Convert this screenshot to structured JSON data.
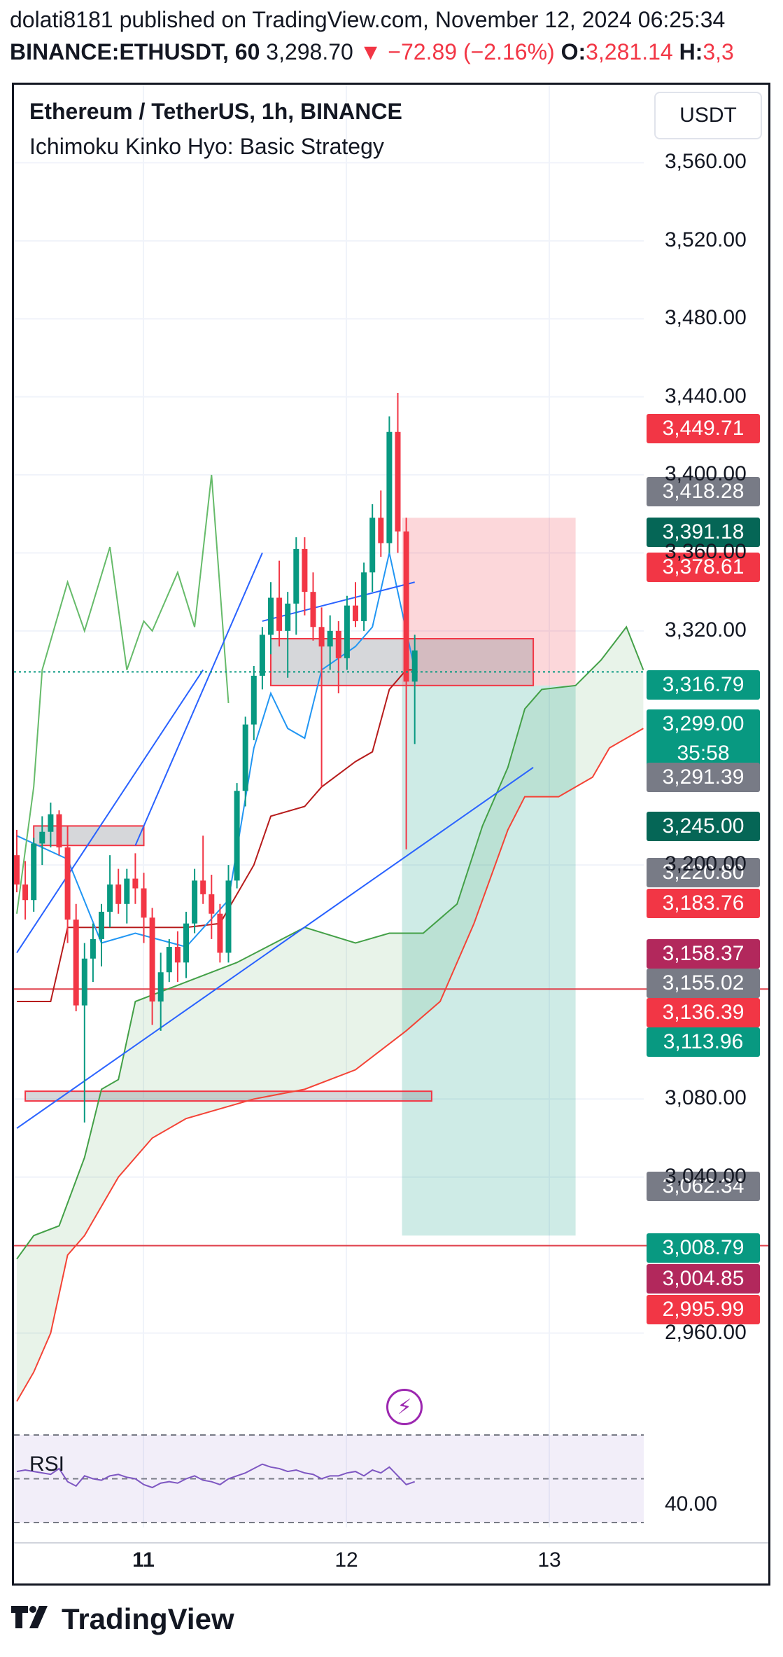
{
  "header": {
    "line1": "dolati8181 published on TradingView.com, November 12, 2024 06:25:34",
    "symbol": "BINANCE:ETHUSDT, 60",
    "price": "3,298.70",
    "change": "▼ −72.89 (−2.16%)",
    "ohlc_o_label": "O:",
    "ohlc_o_value": "3,281.14",
    "ohlc_h_label": "H:",
    "ohlc_h_value": "3,3"
  },
  "chart": {
    "title": "Ethereum / TetherUS, 1h, BINANCE",
    "indicator": "Ichimoku Kinko Hyo: Basic Strategy",
    "currency_button": "USDT",
    "rsi_label": "RSI",
    "rsi_value_label": "40.00",
    "bolt_icon": "⚡",
    "colors": {
      "up": "#089981",
      "down": "#f23645",
      "tenkan": "#2196f3",
      "kijun": "#b71c1c",
      "span_a": "#43a047",
      "span_b": "#f44336",
      "chikou": "#66bb6a",
      "rsi": "#7e57c2"
    }
  },
  "price_tags": [
    {
      "label": "3,449.71",
      "color": "#f23645"
    },
    {
      "label": "3,418.28",
      "color": "#787b86"
    },
    {
      "label": "3,391.18",
      "color": "#056656"
    },
    {
      "label": "3,378.61",
      "color": "#f23645"
    },
    {
      "label": "3,316.79",
      "color": "#089981"
    },
    {
      "label": "3,299.00",
      "sub": "35:58",
      "color": "#089981"
    },
    {
      "label": "3,291.39",
      "color": "#787b86"
    },
    {
      "label": "3,245.00",
      "color": "#056656"
    },
    {
      "label": "3,220.80",
      "color": "#787b86"
    },
    {
      "label": "3,183.76",
      "color": "#f23645"
    },
    {
      "label": "3,158.37",
      "color": "#b2285c"
    },
    {
      "label": "3,155.02",
      "color": "#787b86"
    },
    {
      "label": "3,136.39",
      "color": "#f23645"
    },
    {
      "label": "3,113.96",
      "color": "#089981"
    },
    {
      "label": "3,062.34",
      "color": "#787b86"
    },
    {
      "label": "3,008.79",
      "color": "#089981"
    },
    {
      "label": "3,004.85",
      "color": "#b2285c"
    },
    {
      "label": "2,995.99",
      "color": "#f23645"
    }
  ],
  "chart_data": {
    "type": "candlestick",
    "title": "Ethereum / TetherUS, 1h, BINANCE",
    "y_ticks": [
      "3,560.00",
      "3,520.00",
      "3,480.00",
      "3,440.00",
      "3,400.00",
      "3,360.00",
      "3,320.00",
      "3,200.00",
      "3,080.00",
      "3,040.00",
      "2,960.00"
    ],
    "y_tick_values": [
      3560,
      3520,
      3480,
      3440,
      3400,
      3360,
      3320,
      3200,
      3080,
      3040,
      2960
    ],
    "x_ticks": [
      "11",
      "12",
      "13"
    ],
    "ylim": [
      2925,
      3600
    ],
    "last_price": 3299.0,
    "candles": [
      [
        3205,
        3218,
        3186,
        3190
      ],
      [
        3190,
        3202,
        3172,
        3182
      ],
      [
        3182,
        3214,
        3176,
        3211
      ],
      [
        3211,
        3225,
        3200,
        3217
      ],
      [
        3217,
        3232,
        3209,
        3226
      ],
      [
        3226,
        3228,
        3205,
        3209
      ],
      [
        3209,
        3220,
        3160,
        3172
      ],
      [
        3172,
        3180,
        3125,
        3128
      ],
      [
        3128,
        3160,
        3068,
        3152
      ],
      [
        3152,
        3170,
        3140,
        3162
      ],
      [
        3162,
        3180,
        3148,
        3176
      ],
      [
        3176,
        3205,
        3168,
        3190
      ],
      [
        3190,
        3198,
        3175,
        3180
      ],
      [
        3180,
        3198,
        3170,
        3193
      ],
      [
        3193,
        3206,
        3180,
        3188
      ],
      [
        3188,
        3196,
        3160,
        3173
      ],
      [
        3173,
        3178,
        3118,
        3130
      ],
      [
        3130,
        3155,
        3115,
        3145
      ],
      [
        3145,
        3162,
        3140,
        3158
      ],
      [
        3158,
        3166,
        3140,
        3150
      ],
      [
        3150,
        3176,
        3142,
        3170
      ],
      [
        3170,
        3198,
        3165,
        3192
      ],
      [
        3192,
        3215,
        3180,
        3185
      ],
      [
        3185,
        3195,
        3162,
        3175
      ],
      [
        3175,
        3180,
        3150,
        3155
      ],
      [
        3155,
        3200,
        3150,
        3192
      ],
      [
        3192,
        3242,
        3188,
        3238
      ],
      [
        3238,
        3276,
        3230,
        3272
      ],
      [
        3272,
        3302,
        3264,
        3297
      ],
      [
        3297,
        3322,
        3290,
        3318
      ],
      [
        3318,
        3345,
        3308,
        3337
      ],
      [
        3337,
        3356,
        3312,
        3320
      ],
      [
        3320,
        3340,
        3296,
        3334
      ],
      [
        3334,
        3368,
        3318,
        3362
      ],
      [
        3362,
        3368,
        3328,
        3340
      ],
      [
        3340,
        3350,
        3315,
        3322
      ],
      [
        3322,
        3332,
        3240,
        3312
      ],
      [
        3312,
        3328,
        3300,
        3320
      ],
      [
        3320,
        3325,
        3288,
        3306
      ],
      [
        3306,
        3338,
        3300,
        3333
      ],
      [
        3333,
        3345,
        3322,
        3325
      ],
      [
        3325,
        3355,
        3320,
        3350
      ],
      [
        3350,
        3385,
        3340,
        3378
      ],
      [
        3378,
        3392,
        3358,
        3365
      ],
      [
        3365,
        3430,
        3360,
        3422
      ],
      [
        3422,
        3442,
        3360,
        3371
      ],
      [
        3371,
        3378,
        3208,
        3294
      ],
      [
        3294,
        3318,
        3262,
        3310
      ]
    ],
    "tenkan": [
      [
        0,
        3215
      ],
      [
        6,
        3203
      ],
      [
        10,
        3160
      ],
      [
        14,
        3165
      ],
      [
        20,
        3158
      ],
      [
        25,
        3182
      ],
      [
        28,
        3260
      ],
      [
        30,
        3288
      ],
      [
        32,
        3270
      ],
      [
        34,
        3265
      ],
      [
        36,
        3300
      ],
      [
        40,
        3312
      ],
      [
        42,
        3322
      ],
      [
        44,
        3360
      ],
      [
        46,
        3320
      ],
      [
        47,
        3300
      ]
    ],
    "kijun": [
      [
        0,
        3130
      ],
      [
        4,
        3130
      ],
      [
        6,
        3168
      ],
      [
        10,
        3168
      ],
      [
        20,
        3168
      ],
      [
        24,
        3170
      ],
      [
        26,
        3185
      ],
      [
        28,
        3200
      ],
      [
        30,
        3225
      ],
      [
        34,
        3230
      ],
      [
        36,
        3240
      ],
      [
        40,
        3253
      ],
      [
        42,
        3258
      ],
      [
        44,
        3290
      ],
      [
        46,
        3300
      ],
      [
        47,
        3300
      ]
    ],
    "span_a": [
      [
        0,
        2998
      ],
      [
        2,
        3010
      ],
      [
        5,
        3015
      ],
      [
        8,
        3050
      ],
      [
        10,
        3085
      ],
      [
        12,
        3090
      ],
      [
        14,
        3130
      ],
      [
        20,
        3140
      ],
      [
        26,
        3150
      ],
      [
        34,
        3168
      ],
      [
        40,
        3160
      ],
      [
        44,
        3165
      ],
      [
        48,
        3165
      ],
      [
        52,
        3180
      ],
      [
        55,
        3220
      ],
      [
        58,
        3250
      ],
      [
        60,
        3280
      ],
      [
        62,
        3290
      ],
      [
        66,
        3292
      ],
      [
        69,
        3305
      ],
      [
        72,
        3322
      ],
      [
        74,
        3300
      ]
    ],
    "span_b": [
      [
        0,
        2925
      ],
      [
        2,
        2940
      ],
      [
        4,
        2960
      ],
      [
        6,
        3000
      ],
      [
        8,
        3010
      ],
      [
        12,
        3040
      ],
      [
        16,
        3060
      ],
      [
        20,
        3070
      ],
      [
        28,
        3080
      ],
      [
        34,
        3085
      ],
      [
        40,
        3095
      ],
      [
        46,
        3115
      ],
      [
        50,
        3130
      ],
      [
        54,
        3170
      ],
      [
        58,
        3218
      ],
      [
        60,
        3235
      ],
      [
        64,
        3235
      ],
      [
        68,
        3245
      ],
      [
        70,
        3260
      ],
      [
        74,
        3270
      ]
    ],
    "chikou": [
      [
        0,
        3175
      ],
      [
        2,
        3240
      ],
      [
        3,
        3300
      ],
      [
        6,
        3345
      ],
      [
        8,
        3320
      ],
      [
        11,
        3363
      ],
      [
        13,
        3300
      ],
      [
        15,
        3325
      ],
      [
        16,
        3320
      ],
      [
        19,
        3350
      ],
      [
        21,
        3322
      ],
      [
        23,
        3400
      ],
      [
        25,
        3283
      ]
    ],
    "trendlines": [
      [
        [
          0,
          3155
        ],
        [
          22,
          3300
        ]
      ],
      [
        [
          0,
          3065
        ],
        [
          61,
          3250
        ]
      ],
      [
        [
          14,
          3210
        ],
        [
          29,
          3360
        ]
      ],
      [
        [
          29,
          3325
        ],
        [
          47,
          3345
        ]
      ]
    ],
    "horizontal_lines": [
      3136.39,
      3004.85
    ],
    "boxes": [
      {
        "x1": 2,
        "x2": 15,
        "top": 3220,
        "bottom": 3210
      },
      {
        "x1": 30,
        "x2": 61,
        "top": 3316,
        "bottom": 3292
      },
      {
        "x1": 1,
        "x2": 49,
        "top": 3084,
        "bottom": 3079
      }
    ],
    "position": {
      "entry": 3292,
      "target": 3010,
      "stop": 3378,
      "x1": 45.5,
      "x2": 66
    },
    "rsi": [
      55,
      56,
      55,
      54,
      53,
      57,
      48,
      45,
      52,
      50,
      49,
      52,
      53,
      51,
      50,
      46,
      44,
      47,
      48,
      47,
      50,
      52,
      49,
      48,
      46,
      50,
      52,
      54,
      57,
      60,
      58,
      57,
      55,
      56,
      54,
      53,
      50,
      52,
      52,
      54,
      55,
      52,
      56,
      54,
      58,
      52,
      46,
      48
    ]
  }
}
